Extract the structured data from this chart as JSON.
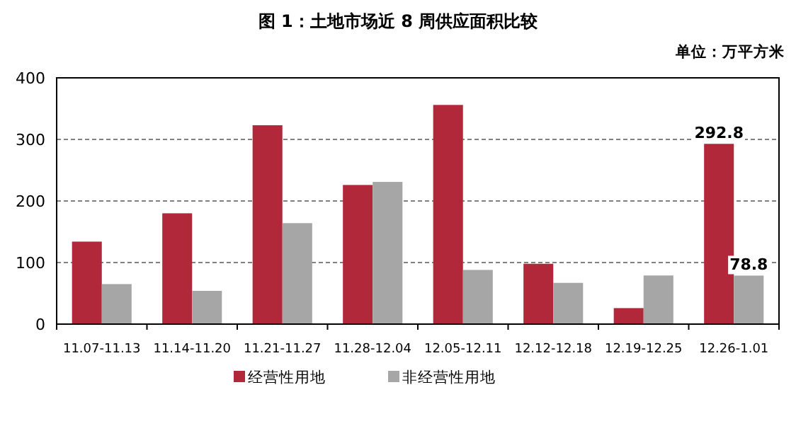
{
  "chart_data": {
    "type": "bar",
    "title": "图 1：土地市场近 8 周供应面积比较",
    "annotations": [
      "单位：万平方米"
    ],
    "categories": [
      "11.07-11.13",
      "11.14-11.20",
      "11.21-11.27",
      "11.28-12.04",
      "12.05-12.11",
      "12.12-12.18",
      "12.19-12.25",
      "12.26-1.01"
    ],
    "series": [
      {
        "name": "经营性用地",
        "color": "#b0283a",
        "values": [
          134,
          180,
          323,
          226,
          356,
          98,
          26,
          292.8
        ],
        "value_labels": [
          null,
          null,
          null,
          null,
          null,
          null,
          null,
          "292.8"
        ]
      },
      {
        "name": "非经营性用地",
        "color": "#a6a6a6",
        "values": [
          65,
          54,
          164,
          231,
          88,
          67,
          79,
          78.8
        ],
        "value_labels": [
          null,
          null,
          null,
          null,
          null,
          null,
          null,
          "78.8"
        ]
      }
    ],
    "ylim": [
      0,
      400
    ],
    "yticks": [
      0,
      100,
      200,
      300,
      400
    ],
    "grid": "y",
    "legend": "bottom"
  }
}
